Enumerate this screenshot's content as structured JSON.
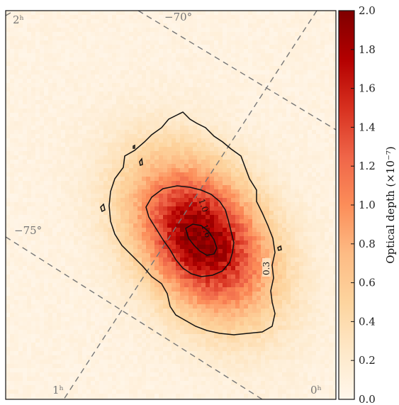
{
  "chart_data": {
    "type": "heatmap",
    "title": "",
    "colorbar": {
      "label": "Optical depth (×10⁻⁷)",
      "range": [
        0.0,
        2.0
      ],
      "ticks": [
        "0.0",
        "0.2",
        "0.4",
        "0.6",
        "0.8",
        "1.0",
        "1.2",
        "1.4",
        "1.6",
        "1.8",
        "2.0"
      ],
      "colormap": "OrRd",
      "colors": [
        "#fff7ec",
        "#fee8c8",
        "#fdd49e",
        "#fdbb84",
        "#fc8d59",
        "#ef6548",
        "#d7301f",
        "#b30000",
        "#7f0000"
      ]
    },
    "contours": [
      {
        "level": 0.3,
        "label": "0.3"
      },
      {
        "level": 1.0,
        "label": "1.0"
      },
      {
        "level": 1.6,
        "label": "1.6"
      }
    ],
    "coordinate_grid": {
      "ra_labels": [
        "2ʰ",
        "1ʰ",
        "0ʰ"
      ],
      "dec_labels": [
        "−70°",
        "−75°"
      ],
      "line_style": "dashed",
      "line_color": "#777777"
    },
    "peak": {
      "value": 1.9,
      "region": "center"
    }
  }
}
